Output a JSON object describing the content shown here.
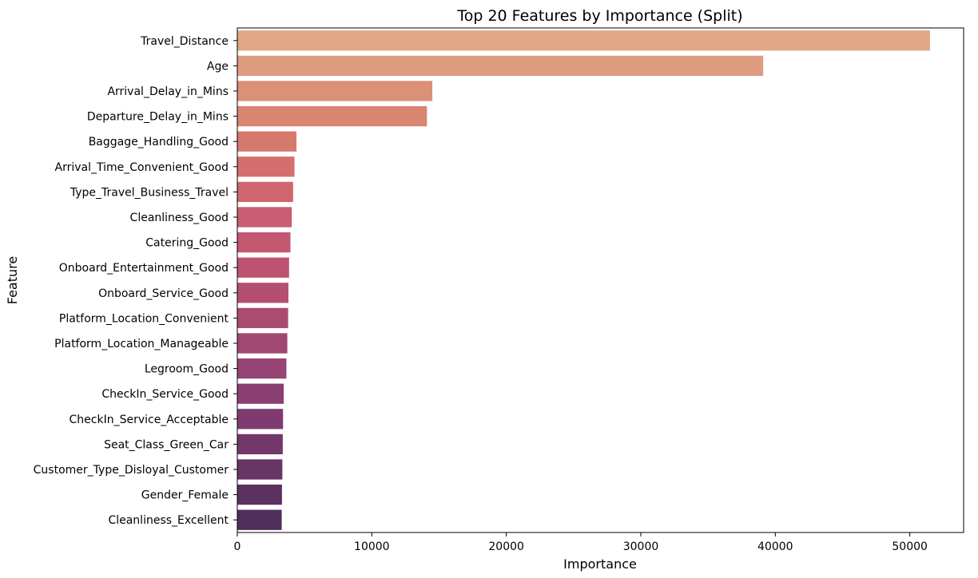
{
  "chart_data": {
    "type": "bar",
    "orientation": "horizontal",
    "title": "Top 20 Features by Importance (Split)",
    "xlabel": "Importance",
    "ylabel": "Feature",
    "xlim": [
      0,
      54000
    ],
    "xticks": [
      0,
      10000,
      20000,
      30000,
      40000,
      50000
    ],
    "grid": false,
    "legend": "none",
    "palette": "flare",
    "categories": [
      "Travel_Distance",
      "Age",
      "Arrival_Delay_in_Mins",
      "Departure_Delay_in_Mins",
      "Baggage_Handling_Good",
      "Arrival_Time_Convenient_Good",
      "Type_Travel_Business_Travel",
      "Cleanliness_Good",
      "Catering_Good",
      "Onboard_Entertainment_Good",
      "Onboard_Service_Good",
      "Platform_Location_Convenient",
      "Platform_Location_Manageable",
      "Legroom_Good",
      "CheckIn_Service_Good",
      "CheckIn_Service_Acceptable",
      "Seat_Class_Green_Car",
      "Customer_Type_Disloyal_Customer",
      "Gender_Female",
      "Cleanliness_Excellent"
    ],
    "values": [
      51500,
      39100,
      14500,
      14100,
      4400,
      4250,
      4150,
      4050,
      3950,
      3850,
      3800,
      3780,
      3720,
      3650,
      3450,
      3400,
      3380,
      3350,
      3320,
      3300
    ],
    "colors": [
      "#e1a886",
      "#de9c7f",
      "#db9078",
      "#d88571",
      "#d6796d",
      "#d36f6e",
      "#cf6670",
      "#ca5d71",
      "#c55871",
      "#bd5371",
      "#b44f71",
      "#aa4b72",
      "#a04772",
      "#954473",
      "#8a3f72",
      "#7f3b70",
      "#72386b",
      "#673566",
      "#5b3160",
      "#502d5a"
    ]
  }
}
